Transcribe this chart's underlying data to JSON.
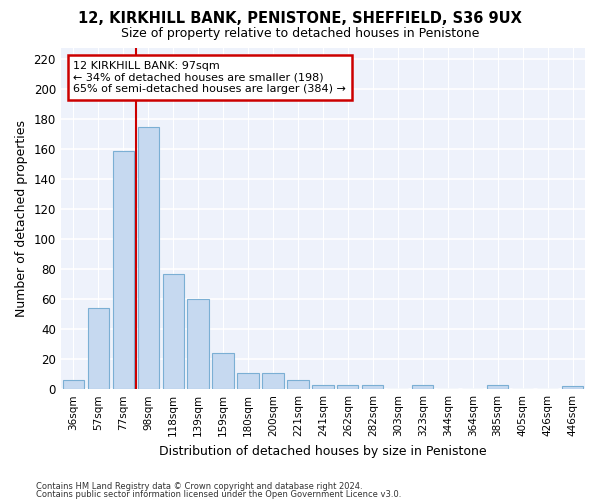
{
  "title": "12, KIRKHILL BANK, PENISTONE, SHEFFIELD, S36 9UX",
  "subtitle": "Size of property relative to detached houses in Penistone",
  "xlabel": "Distribution of detached houses by size in Penistone",
  "ylabel": "Number of detached properties",
  "categories": [
    "36sqm",
    "57sqm",
    "77sqm",
    "98sqm",
    "118sqm",
    "139sqm",
    "159sqm",
    "180sqm",
    "200sqm",
    "221sqm",
    "241sqm",
    "262sqm",
    "282sqm",
    "303sqm",
    "323sqm",
    "344sqm",
    "364sqm",
    "385sqm",
    "405sqm",
    "426sqm",
    "446sqm"
  ],
  "values": [
    6,
    54,
    159,
    175,
    77,
    60,
    24,
    11,
    11,
    6,
    3,
    3,
    3,
    0,
    3,
    0,
    0,
    3,
    0,
    0,
    2
  ],
  "bar_color": "#c6d9f0",
  "bar_edge_color": "#7bafd4",
  "vline_idx": 3,
  "annotation_title": "12 KIRKHILL BANK: 97sqm",
  "annotation_line1": "← 34% of detached houses are smaller (198)",
  "annotation_line2": "65% of semi-detached houses are larger (384) →",
  "annotation_box_facecolor": "#ffffff",
  "annotation_box_edgecolor": "#cc0000",
  "vline_color": "#cc0000",
  "ylim": [
    0,
    228
  ],
  "yticks": [
    0,
    20,
    40,
    60,
    80,
    100,
    120,
    140,
    160,
    180,
    200,
    220
  ],
  "plot_bg": "#eef2fb",
  "grid_color": "#ffffff",
  "fig_bg": "#ffffff",
  "footer_line1": "Contains HM Land Registry data © Crown copyright and database right 2024.",
  "footer_line2": "Contains public sector information licensed under the Open Government Licence v3.0."
}
